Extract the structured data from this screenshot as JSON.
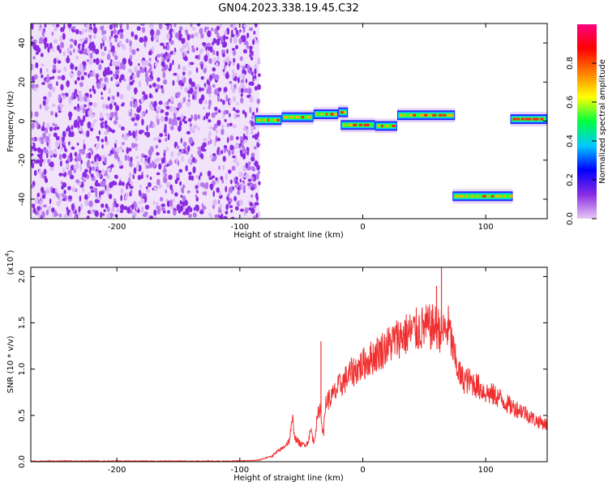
{
  "title": "GN04.2023.338.19.45.C32",
  "chart_data": [
    {
      "type": "heatmap",
      "xlabel": "Height of straight line (km)",
      "ylabel": "Frequency (Hz)",
      "xlim": [
        -270,
        150
      ],
      "ylim": [
        -50,
        50
      ],
      "x_ticks": [
        -200,
        -100,
        0,
        100
      ],
      "y_ticks": [
        -40,
        -20,
        0,
        20,
        40
      ],
      "colorbar": {
        "label": "Normalized spectral amplitude",
        "range": [
          0,
          1
        ],
        "ticks": [
          0.0,
          0.2,
          0.4,
          0.6,
          0.8
        ],
        "colormap": [
          "#e8c8f4",
          "#8a2be2",
          "#0000ff",
          "#00c8ff",
          "#00ff40",
          "#ffff00",
          "#ff8000",
          "#ff0000",
          "#ff0080"
        ]
      },
      "regions": [
        {
          "kind": "noise",
          "x": [
            -270,
            -84
          ],
          "freq": [
            -50,
            50
          ]
        },
        {
          "kind": "track",
          "x": [
            -88,
            -66
          ],
          "freq": 0.5
        },
        {
          "kind": "track",
          "x": [
            -66,
            -40
          ],
          "freq": 2
        },
        {
          "kind": "track",
          "x": [
            -40,
            -20
          ],
          "freq": 3.5
        },
        {
          "kind": "track",
          "x": [
            -20,
            -12
          ],
          "freq": 4.5
        },
        {
          "kind": "track",
          "x": [
            -18,
            10
          ],
          "freq": -2
        },
        {
          "kind": "track",
          "x": [
            10,
            28
          ],
          "freq": -2.5
        },
        {
          "kind": "track",
          "x": [
            28,
            75
          ],
          "freq": 3
        },
        {
          "kind": "track",
          "x": [
            73,
            122
          ],
          "freq": -38.5
        },
        {
          "kind": "track",
          "x": [
            120,
            150
          ],
          "freq": 1
        }
      ]
    },
    {
      "type": "line",
      "xlabel": "Height of straight line (km)",
      "ylabel": "SNR (10 * v/v)",
      "y_multiplier": "(x10",
      "y_multiplier_exp": "4",
      "xlim": [
        -270,
        150
      ],
      "ylim": [
        0,
        2.1
      ],
      "x_ticks": [
        -200,
        -100,
        0,
        100
      ],
      "y_ticks": [
        0.0,
        0.5,
        1.0,
        1.5,
        2.0
      ],
      "color": "#f03030",
      "series": [
        {
          "x": [
            -270,
            -200,
            -150,
            -100,
            -85,
            -75,
            -70,
            -65,
            -60,
            -57,
            -55,
            -50,
            -45,
            -42,
            -40,
            -37,
            -35,
            -32,
            -30,
            -25,
            -20,
            -10,
            0,
            10,
            20,
            30,
            40,
            50,
            60,
            65,
            70,
            75,
            80,
            90,
            100,
            110,
            120,
            130,
            140,
            150
          ],
          "values": [
            0.0,
            0.0,
            0.0,
            0.0,
            0.01,
            0.05,
            0.1,
            0.15,
            0.22,
            0.45,
            0.25,
            0.18,
            0.2,
            0.35,
            0.2,
            0.45,
            0.6,
            0.3,
            0.65,
            0.7,
            0.8,
            0.95,
            1.05,
            1.15,
            1.25,
            1.35,
            1.4,
            1.45,
            1.45,
            1.4,
            1.45,
            1.1,
            0.9,
            0.85,
            0.75,
            0.7,
            0.6,
            0.55,
            0.45,
            0.4
          ]
        }
      ],
      "spikes": [
        {
          "x": -34,
          "value": 1.3
        },
        {
          "x": 64,
          "value": 2.1
        },
        {
          "x": 60,
          "value": 1.9
        }
      ]
    }
  ]
}
